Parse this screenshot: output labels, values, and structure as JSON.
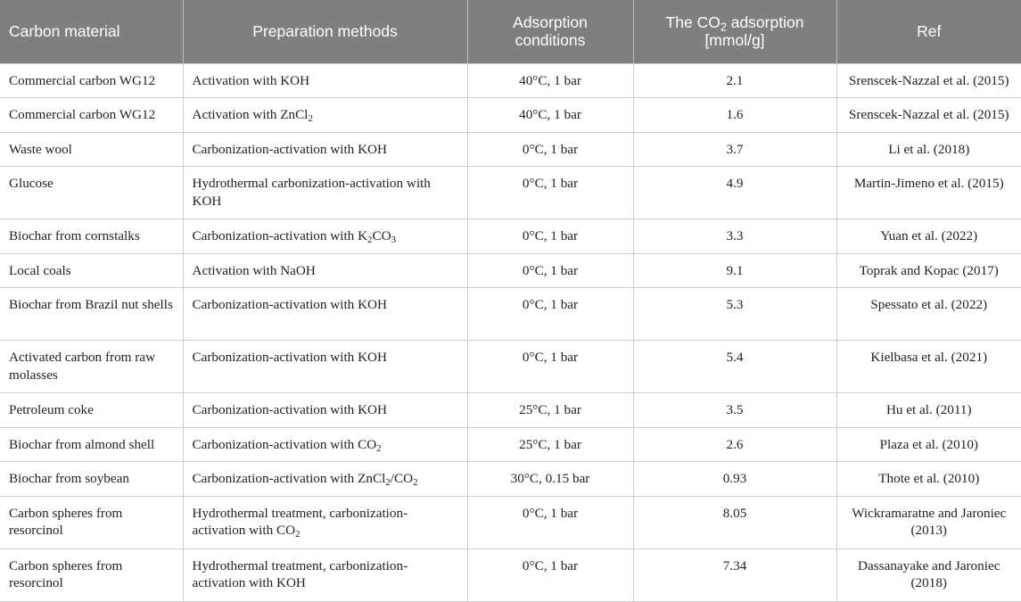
{
  "table": {
    "headers": {
      "material": "Carbon material",
      "method": "Preparation methods",
      "conditions": "Adsorption conditions",
      "adsorption_pre": "The CO",
      "adsorption_sub": "2",
      "adsorption_post": " adsorption [mmol/g]",
      "ref": "Ref"
    },
    "rows": [
      {
        "material": "Commercial carbon WG12",
        "method": {
          "pre": "Activation with KOH",
          "sub": "",
          "mid": "",
          "sub2": "",
          "post": ""
        },
        "conditions": "40°C, 1 bar",
        "adsorption": "2.1",
        "ref": "Srenscek-Nazzal et al. (2015)"
      },
      {
        "material": "Commercial carbon WG12",
        "method": {
          "pre": "Activation with ZnCl",
          "sub": "2",
          "mid": "",
          "sub2": "",
          "post": ""
        },
        "conditions": "40°C, 1 bar",
        "adsorption": "1.6",
        "ref": "Srenscek-Nazzal et al. (2015)"
      },
      {
        "material": "Waste wool",
        "method": {
          "pre": "Carbonization-activation with KOH",
          "sub": "",
          "mid": "",
          "sub2": "",
          "post": ""
        },
        "conditions": "0°C, 1 bar",
        "adsorption": "3.7",
        "ref": "Li et al. (2018)"
      },
      {
        "material": "Glucose",
        "method": {
          "pre": "Hydrothermal carbonization-activation with KOH",
          "sub": "",
          "mid": "",
          "sub2": "",
          "post": ""
        },
        "conditions": "0°C, 1 bar",
        "adsorption": "4.9",
        "ref": "Martin-Jimeno et al. (2015)"
      },
      {
        "material": "Biochar from cornstalks",
        "method": {
          "pre": "Carbonization-activation with K",
          "sub": "2",
          "mid": "CO",
          "sub2": "3",
          "post": ""
        },
        "conditions": "0°C, 1 bar",
        "adsorption": "3.3",
        "ref": "Yuan et al. (2022)"
      },
      {
        "material": "Local coals",
        "method": {
          "pre": "Activation with NaOH",
          "sub": "",
          "mid": "",
          "sub2": "",
          "post": ""
        },
        "conditions": "0°C, 1 bar",
        "adsorption": "9.1",
        "ref": "Toprak and Kopac (2017)"
      },
      {
        "material": "Biochar from Brazil nut shells",
        "method": {
          "pre": "Carbonization-activation with KOH",
          "sub": "",
          "mid": "",
          "sub2": "",
          "post": ""
        },
        "conditions": "0°C, 1 bar",
        "adsorption": "5.3",
        "ref": "Spessato et al. (2022)"
      },
      {
        "material": "Activated carbon from raw molasses",
        "method": {
          "pre": "Carbonization-activation with KOH",
          "sub": "",
          "mid": "",
          "sub2": "",
          "post": ""
        },
        "conditions": "0°C, 1 bar",
        "adsorption": "5.4",
        "ref": "Kielbasa et al. (2021)"
      },
      {
        "material": "Petroleum coke",
        "method": {
          "pre": "Carbonization-activation with KOH",
          "sub": "",
          "mid": "",
          "sub2": "",
          "post": ""
        },
        "conditions": "25°C, 1 bar",
        "adsorption": "3.5",
        "ref": "Hu et al. (2011)"
      },
      {
        "material": "Biochar from almond shell",
        "method": {
          "pre": "Carbonization-activation with CO",
          "sub": "2",
          "mid": "",
          "sub2": "",
          "post": ""
        },
        "conditions": "25°C, 1 bar",
        "adsorption": "2.6",
        "ref": "Plaza et al. (2010)"
      },
      {
        "material": "Biochar from soybean",
        "method": {
          "pre": "Carbonization-activation with ZnCl",
          "sub": "2",
          "mid": "/CO",
          "sub2": "2",
          "post": ""
        },
        "conditions": "30°C, 0.15 bar",
        "adsorption": "0.93",
        "ref": "Thote et al. (2010)"
      },
      {
        "material": "Carbon spheres from resorcinol",
        "method": {
          "pre": "Hydrothermal treatment, carbonization-activation with CO",
          "sub": "2",
          "mid": "",
          "sub2": "",
          "post": ""
        },
        "conditions": "0°C, 1 bar",
        "adsorption": "8.05",
        "ref": "Wickramaratne and Jaroniec (2013)"
      },
      {
        "material": "Carbon spheres from resorcinol",
        "method": {
          "pre": "Hydrothermal treatment, carbonization-activation with KOH",
          "sub": "",
          "mid": "",
          "sub2": "",
          "post": ""
        },
        "conditions": "0°C, 1 bar",
        "adsorption": "7.34",
        "ref": "Dassanayake and Jaroniec (2018)"
      }
    ]
  }
}
